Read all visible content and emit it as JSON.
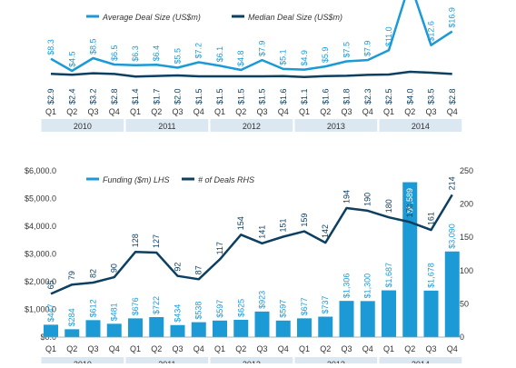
{
  "colors": {
    "avg_line": "#1b9ad6",
    "median_line": "#0d3f61",
    "funding_bar": "#1b9ad6",
    "deals_line": "#0d3f61",
    "year_band": "#dbe7f1",
    "axis_text": "#333333"
  },
  "chart_data": [
    {
      "type": "line",
      "legend": [
        "Average Deal Size (US$m)",
        "Median Deal Size (US$m)"
      ],
      "legend_placement": "top",
      "categories": [
        "Q1",
        "Q2",
        "Q3",
        "Q4",
        "Q1",
        "Q2",
        "Q3",
        "Q4",
        "Q1",
        "Q2",
        "Q3",
        "Q4",
        "Q1",
        "Q2",
        "Q3",
        "Q4",
        "Q1",
        "Q2",
        "Q3",
        "Q4"
      ],
      "years": [
        "2010",
        "2011",
        "2012",
        "2013",
        "2014"
      ],
      "grid": false,
      "series": [
        {
          "name": "Average Deal Size (US$m)",
          "values": [
            8.3,
            4.5,
            8.5,
            6.5,
            6.3,
            6.4,
            5.5,
            7.2,
            6.1,
            4.8,
            7.9,
            5.1,
            4.9,
            5.9,
            7.5,
            7.9,
            11.0,
            32.3,
            12.6,
            16.9
          ],
          "labels": [
            "$8.3",
            "$4.5",
            "$8.5",
            "$6.5",
            "$6.3",
            "$6.4",
            "$5.5",
            "$7.2",
            "$6.1",
            "$4.8",
            "$7.9",
            "$5.1",
            "$4.9",
            "$5.9",
            "$7.5",
            "$7.9",
            "$11.0",
            "",
            "$12.6",
            "$16.9"
          ]
        },
        {
          "name": "Median Deal Size (US$m)",
          "values": [
            2.9,
            2.4,
            3.2,
            2.8,
            1.4,
            1.7,
            2.0,
            1.5,
            1.5,
            1.5,
            1.5,
            1.6,
            1.1,
            1.6,
            1.8,
            2.3,
            2.5,
            4.0,
            3.5,
            2.8
          ],
          "labels": [
            "$2.9",
            "$2.4",
            "$3.2",
            "$2.8",
            "$1.4",
            "$1.7",
            "$2.0",
            "$1.5",
            "$1.5",
            "$1.5",
            "$1.5",
            "$1.6",
            "$1.1",
            "$1.6",
            "$1.8",
            "$2.3",
            "$2.5",
            "$4.0",
            "$3.5",
            "$2.8"
          ]
        }
      ]
    },
    {
      "type": "bar",
      "legend": [
        "Funding ($m) LHS",
        "# of Deals RHS"
      ],
      "legend_placement": "top",
      "categories": [
        "Q1",
        "Q2",
        "Q3",
        "Q4",
        "Q1",
        "Q2",
        "Q3",
        "Q4",
        "Q1",
        "Q2",
        "Q3",
        "Q4",
        "Q1",
        "Q2",
        "Q3",
        "Q4",
        "Q1",
        "Q2",
        "Q3",
        "Q4"
      ],
      "years": [
        "2010",
        "2011",
        "2012",
        "2013",
        "2014"
      ],
      "grid": false,
      "y_left": {
        "min": 0,
        "max": 6000,
        "ticks": [
          "$0.0",
          "$1,000.0",
          "$2,000.0",
          "$3,000.0",
          "$4,000.0",
          "$5,000.0",
          "$6,000.0"
        ]
      },
      "y_right": {
        "min": 0,
        "max": 250,
        "ticks": [
          "0",
          "50",
          "100",
          "150",
          "200",
          "250"
        ]
      },
      "series": [
        {
          "name": "Funding ($m) LHS",
          "type": "bar",
          "axis": "left",
          "values": [
            447,
            284,
            612,
            481,
            676,
            722,
            434,
            538,
            597,
            625,
            923,
            597,
            677,
            737,
            1306,
            1300,
            1687,
            5589,
            1678,
            3090
          ],
          "labels": [
            "$447",
            "$284",
            "$612",
            "$481",
            "$676",
            "$722",
            "$434",
            "$538",
            "$597",
            "$625",
            "$923",
            "$597",
            "$677",
            "$737",
            "$1,306",
            "$1,300",
            "$1,687",
            "$5,589",
            "$1,678",
            "$3,090"
          ]
        },
        {
          "name": "# of Deals RHS",
          "type": "line",
          "axis": "right",
          "values": [
            65,
            79,
            82,
            90,
            128,
            127,
            92,
            87,
            117,
            154,
            141,
            151,
            159,
            142,
            194,
            190,
            180,
            173,
            161,
            214
          ],
          "labels": [
            "65",
            "79",
            "82",
            "90",
            "128",
            "127",
            "92",
            "87",
            "117",
            "154",
            "141",
            "151",
            "159",
            "142",
            "194",
            "190",
            "180",
            "173",
            "161",
            "214"
          ]
        }
      ]
    }
  ]
}
